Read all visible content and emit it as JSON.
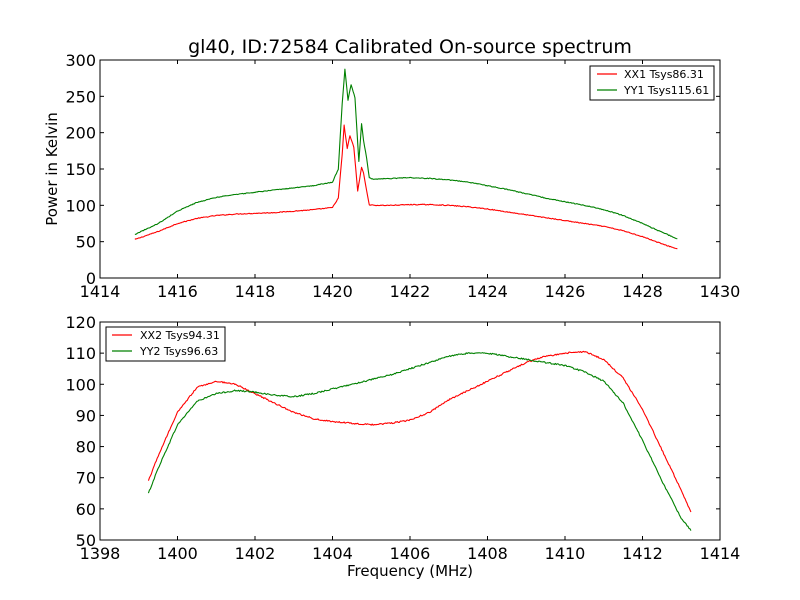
{
  "chart_data": [
    {
      "type": "line",
      "title": "gl40, ID:72584 Calibrated On-source spectrum",
      "xlabel": "",
      "ylabel": "Power in Kelvin",
      "xlim": [
        1414,
        1430
      ],
      "ylim": [
        0,
        300
      ],
      "xticks": [
        1414,
        1416,
        1418,
        1420,
        1422,
        1424,
        1426,
        1428,
        1430
      ],
      "yticks": [
        0,
        50,
        100,
        150,
        200,
        250,
        300
      ],
      "grid": false,
      "legend_position": "top-right",
      "series": [
        {
          "name": "XX1 Tsys86.31",
          "color": "#ff0000",
          "x": [
            1414.9,
            1415.5,
            1416.0,
            1416.5,
            1417.0,
            1417.5,
            1418.0,
            1418.5,
            1419.0,
            1419.5,
            1420.0,
            1420.15,
            1420.25,
            1420.3,
            1420.38,
            1420.45,
            1420.55,
            1420.65,
            1420.75,
            1420.8,
            1420.88,
            1420.95,
            1421.05,
            1421.5,
            1422.0,
            1422.5,
            1423.0,
            1423.5,
            1424.0,
            1424.5,
            1425.0,
            1425.5,
            1426.0,
            1426.5,
            1427.0,
            1427.5,
            1428.0,
            1428.5,
            1428.9
          ],
          "y": [
            53,
            64,
            75,
            82,
            86,
            88,
            89,
            90,
            92,
            94,
            97,
            110,
            170,
            210,
            178,
            196,
            180,
            120,
            152,
            145,
            120,
            101,
            100,
            100,
            101,
            101,
            100,
            98,
            95,
            91,
            87,
            83,
            79,
            75,
            71,
            65,
            57,
            47,
            40
          ]
        },
        {
          "name": "YY1 Tsys115.61",
          "color": "#008000",
          "x": [
            1414.9,
            1415.5,
            1416.0,
            1416.5,
            1417.0,
            1417.5,
            1418.0,
            1418.5,
            1419.0,
            1419.5,
            1420.0,
            1420.15,
            1420.25,
            1420.32,
            1420.4,
            1420.48,
            1420.58,
            1420.68,
            1420.75,
            1420.8,
            1420.88,
            1420.95,
            1421.05,
            1421.5,
            1422.0,
            1422.5,
            1423.0,
            1423.5,
            1424.0,
            1424.5,
            1425.0,
            1425.5,
            1426.0,
            1426.5,
            1427.0,
            1427.5,
            1428.0,
            1428.5,
            1428.9
          ],
          "y": [
            60,
            75,
            92,
            104,
            111,
            115,
            118,
            121,
            124,
            127,
            132,
            150,
            240,
            287,
            245,
            266,
            248,
            160,
            212,
            190,
            165,
            138,
            136,
            137,
            138,
            137,
            135,
            132,
            127,
            122,
            116,
            110,
            105,
            100,
            94,
            86,
            75,
            63,
            54
          ]
        }
      ]
    },
    {
      "type": "line",
      "title": "",
      "xlabel": "Frequency (MHz)",
      "ylabel": "",
      "xlim": [
        1398,
        1414
      ],
      "ylim": [
        50,
        120
      ],
      "xticks": [
        1398,
        1400,
        1402,
        1404,
        1406,
        1408,
        1410,
        1412,
        1414
      ],
      "yticks": [
        50,
        60,
        70,
        80,
        90,
        100,
        110,
        120
      ],
      "grid": false,
      "legend_position": "top-left",
      "series": [
        {
          "name": "XX2 Tsys94.31",
          "color": "#ff0000",
          "x": [
            1399.25,
            1399.5,
            1400.0,
            1400.5,
            1401.0,
            1401.5,
            1402.0,
            1402.5,
            1403.0,
            1403.5,
            1404.0,
            1404.5,
            1405.0,
            1405.5,
            1406.0,
            1406.5,
            1407.0,
            1407.5,
            1408.0,
            1408.5,
            1409.0,
            1409.5,
            1410.0,
            1410.5,
            1411.0,
            1411.5,
            1412.0,
            1412.5,
            1413.0,
            1413.25
          ],
          "y": [
            69,
            77,
            91,
            99,
            101,
            100,
            97,
            94,
            91,
            89,
            88,
            87.5,
            87,
            87.5,
            88.5,
            91,
            95,
            98,
            101,
            104,
            107,
            109,
            110,
            110.5,
            108,
            102,
            92,
            79,
            66,
            59
          ]
        },
        {
          "name": "YY2 Tsys96.63",
          "color": "#008000",
          "x": [
            1399.25,
            1399.5,
            1400.0,
            1400.5,
            1401.0,
            1401.5,
            1402.0,
            1402.5,
            1403.0,
            1403.5,
            1404.0,
            1404.5,
            1405.0,
            1405.5,
            1406.0,
            1406.5,
            1407.0,
            1407.5,
            1408.0,
            1408.5,
            1409.0,
            1409.5,
            1410.0,
            1410.5,
            1411.0,
            1411.5,
            1412.0,
            1412.5,
            1413.0,
            1413.25
          ],
          "y": [
            65,
            73,
            87,
            94.5,
            97,
            98,
            97.5,
            96.5,
            96,
            97,
            98.5,
            100,
            101.5,
            103,
            105,
            107,
            109,
            110,
            110,
            109,
            108,
            107,
            106,
            104,
            101,
            94,
            82,
            69,
            57,
            53
          ]
        }
      ]
    }
  ]
}
